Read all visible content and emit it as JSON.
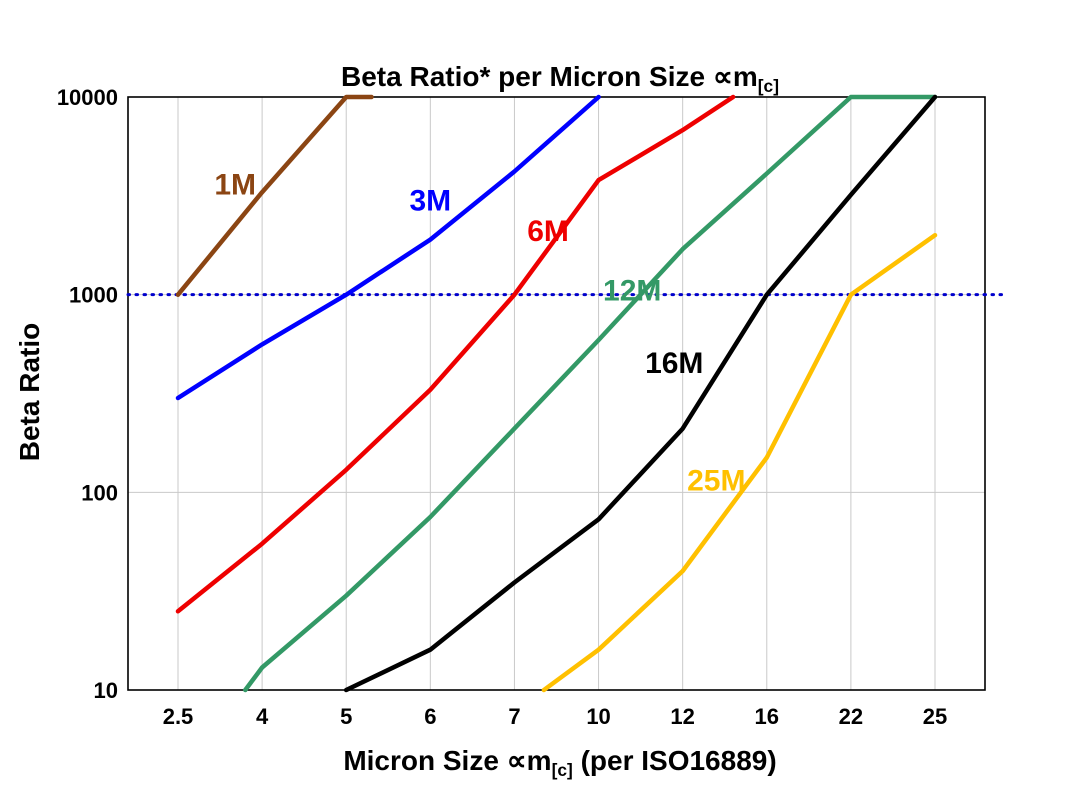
{
  "title": {
    "pre": "Beta Ratio* per Micron Size ∝m",
    "sub": "[c]"
  },
  "axes": {
    "y_label": "Beta Ratio",
    "x_label_pre": "Micron Size ∝m",
    "x_label_sub": "[c]",
    "x_label_post": " (per ISO16889)"
  },
  "chart_data": {
    "type": "line",
    "title": "Beta Ratio* per Micron Size ∝m[c]",
    "xlabel": "Micron Size ∝m[c] (per ISO16889)",
    "ylabel": "Beta Ratio",
    "x_categories": [
      "2.5",
      "4",
      "5",
      "6",
      "7",
      "10",
      "12",
      "16",
      "22",
      "25"
    ],
    "y_scale": "log",
    "y_ticks": [
      10,
      100,
      1000,
      10000
    ],
    "ylim": [
      10,
      10000
    ],
    "grid": true,
    "legend_position": "inline-labels",
    "reference_line": {
      "value": 1000,
      "color": "#0000CC",
      "style": "dotted"
    },
    "series": [
      {
        "name": "1M",
        "color": "#8B4513",
        "points": [
          [
            0,
            1000
          ],
          [
            1,
            3300
          ],
          [
            2,
            10000
          ],
          [
            2.3,
            10000
          ]
        ],
        "label_pos": [
          0.68,
          3600
        ]
      },
      {
        "name": "3M",
        "color": "#0000FF",
        "points": [
          [
            0,
            300
          ],
          [
            1,
            560
          ],
          [
            2,
            1000
          ],
          [
            3,
            1900
          ],
          [
            4,
            4200
          ],
          [
            5,
            10000
          ]
        ],
        "label_pos": [
          3.0,
          3000
        ]
      },
      {
        "name": "6M",
        "color": "#EE0000",
        "points": [
          [
            0,
            25
          ],
          [
            1,
            55
          ],
          [
            2,
            130
          ],
          [
            3,
            330
          ],
          [
            4,
            1000
          ],
          [
            5,
            3800
          ],
          [
            6,
            6800
          ],
          [
            6.6,
            10000
          ]
        ],
        "label_pos": [
          4.4,
          2100
        ]
      },
      {
        "name": "12M",
        "color": "#339966",
        "points": [
          [
            0.8,
            10
          ],
          [
            1,
            13
          ],
          [
            2,
            30
          ],
          [
            3,
            75
          ],
          [
            4,
            210
          ],
          [
            5,
            590
          ],
          [
            6,
            1700
          ],
          [
            7,
            4100
          ],
          [
            8,
            10000
          ],
          [
            9,
            10000
          ]
        ],
        "label_pos": [
          5.4,
          1050
        ]
      },
      {
        "name": "16M",
        "color": "#000000",
        "points": [
          [
            2,
            10
          ],
          [
            3,
            16
          ],
          [
            4,
            35
          ],
          [
            5,
            73
          ],
          [
            6,
            210
          ],
          [
            7,
            1000
          ],
          [
            8,
            3200
          ],
          [
            9,
            10000
          ]
        ],
        "label_pos": [
          5.9,
          450
        ]
      },
      {
        "name": "25M",
        "color": "#FFC000",
        "points": [
          [
            4.35,
            10
          ],
          [
            5,
            16
          ],
          [
            6,
            40
          ],
          [
            7,
            150
          ],
          [
            8,
            1000
          ],
          [
            9,
            2000
          ]
        ],
        "label_pos": [
          6.4,
          115
        ]
      }
    ]
  }
}
